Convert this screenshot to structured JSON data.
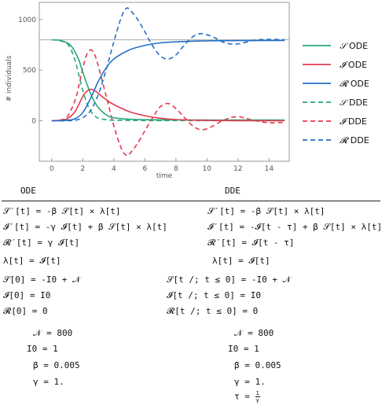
{
  "chart_data": {
    "type": "line",
    "xlabel": "time",
    "ylabel": "# individuals",
    "xlim": [
      -0.8,
      15.3
    ],
    "ylim": [
      -400,
      1170
    ],
    "xticks": [
      "0",
      "2",
      "4",
      "6",
      "8",
      "10",
      "12",
      "14"
    ],
    "yticks": [
      "0",
      "500",
      "1000"
    ],
    "reference_line": 800,
    "legend_position": "right",
    "series": [
      {
        "name": "S ODE",
        "legend_symbol": "𝒮",
        "legend_suffix": " ODE",
        "color": "#2aa876",
        "dashed": false,
        "x": [
          0,
          0.5,
          1,
          1.25,
          1.5,
          1.75,
          2,
          2.25,
          2.5,
          2.75,
          3,
          3.5,
          4,
          5,
          6,
          8,
          10,
          12,
          15
        ],
        "y": [
          799,
          795,
          770,
          740,
          680,
          600,
          480,
          370,
          270,
          190,
          130,
          60,
          30,
          15,
          10,
          8,
          7,
          7,
          7
        ]
      },
      {
        "name": "I ODE",
        "legend_symbol": "𝓘",
        "legend_suffix": " ODE",
        "color": "#e23b4e",
        "dashed": false,
        "x": [
          0,
          0.5,
          1,
          1.5,
          2,
          2.25,
          2.5,
          2.75,
          3,
          3.5,
          4,
          5,
          6,
          7,
          8,
          10,
          12,
          15
        ],
        "y": [
          1,
          5,
          20,
          90,
          240,
          290,
          310,
          300,
          270,
          210,
          160,
          90,
          50,
          25,
          12,
          3,
          1,
          0
        ]
      },
      {
        "name": "R ODE",
        "legend_symbol": "𝓡",
        "legend_suffix": " ODE",
        "color": "#2670c4",
        "dashed": false,
        "x": [
          0,
          0.5,
          1,
          1.5,
          2,
          2.5,
          3,
          3.5,
          4,
          5,
          6,
          7,
          8,
          10,
          12,
          15
        ],
        "y": [
          0,
          1,
          5,
          20,
          80,
          220,
          390,
          520,
          610,
          700,
          745,
          770,
          780,
          790,
          792,
          793
        ]
      },
      {
        "name": "S DDE",
        "legend_symbol": "𝒮",
        "legend_suffix": " DDE",
        "color": "#2aa876",
        "dashed": true,
        "x": [
          0,
          0.5,
          1,
          1.25,
          1.5,
          1.75,
          2,
          2.25,
          2.5,
          2.75,
          3,
          3.5,
          4,
          5,
          6,
          8,
          10,
          12,
          15
        ],
        "y": [
          799,
          794,
          760,
          700,
          600,
          450,
          300,
          180,
          100,
          50,
          25,
          10,
          5,
          3,
          2,
          2,
          2,
          2,
          2
        ]
      },
      {
        "name": "I DDE",
        "legend_symbol": "𝓘",
        "legend_suffix": " DDE",
        "color": "#e23b4e",
        "dashed": true,
        "x": [
          0,
          0.5,
          1,
          1.5,
          1.75,
          2,
          2.25,
          2.5,
          2.75,
          3,
          3.5,
          4,
          4.5,
          4.8,
          5,
          5.5,
          6,
          6.5,
          7,
          7.5,
          8,
          8.5,
          9,
          9.5,
          10,
          10.5,
          11,
          11.5,
          12,
          12.5,
          13,
          14,
          15
        ],
        "y": [
          1,
          6,
          40,
          200,
          350,
          520,
          650,
          700,
          660,
          540,
          250,
          -50,
          -280,
          -340,
          -330,
          -230,
          -100,
          30,
          140,
          170,
          120,
          40,
          -40,
          -85,
          -80,
          -40,
          0,
          30,
          40,
          25,
          5,
          -20,
          -15
        ]
      },
      {
        "name": "R DDE",
        "legend_symbol": "𝓡",
        "legend_suffix": " DDE",
        "color": "#2670c4",
        "dashed": true,
        "x": [
          0,
          1,
          1.5,
          2,
          2.5,
          3,
          3.5,
          4,
          4.5,
          4.8,
          5,
          5.5,
          6,
          6.5,
          7,
          7.5,
          8,
          8.5,
          9,
          9.5,
          10,
          10.5,
          11,
          11.5,
          12,
          12.5,
          13,
          14,
          15
        ],
        "y": [
          0,
          0,
          5,
          30,
          100,
          260,
          500,
          780,
          1030,
          1110,
          1100,
          1010,
          880,
          740,
          640,
          610,
          650,
          740,
          820,
          860,
          850,
          820,
          780,
          760,
          760,
          775,
          795,
          805,
          800
        ]
      }
    ]
  },
  "equations": {
    "ode_header": "ODE",
    "dde_header": "DDE",
    "ode": [
      "𝒮′[t] = -β 𝒮[t] × λ[t]",
      "𝓘′[t] = -γ 𝓘[t] + β 𝒮[t] × λ[t]",
      "𝓡′[t] = γ 𝓘[t]",
      "λ[t] = 𝓘[t]",
      "𝒮[0] = -I0 + 𝒩",
      "𝓘[0] = I0",
      "𝓡[0] = 0",
      "𝒩 = 800",
      "I0 = 1",
      "β = 0.005",
      "γ = 1."
    ],
    "dde": [
      "𝒮′[t] = -β 𝒮[t] × λ[t]",
      "𝓘′[t] = -𝓘[t - τ] + β 𝒮[t] × λ[t]",
      "𝓡′[t] = 𝓘[t - τ]",
      "λ[t] = 𝓘[t]",
      "𝒮[t /; t ≤ 0] = -I0 + 𝒩",
      "𝓘[t /; t ≤ 0] = I0",
      "𝓡[t /; t ≤ 0] = 0",
      "𝒩 = 800",
      "I0 = 1",
      "β = 0.005",
      "γ = 1.",
      "τ = "
    ],
    "tau_num": "1",
    "tau_den": "γ"
  }
}
